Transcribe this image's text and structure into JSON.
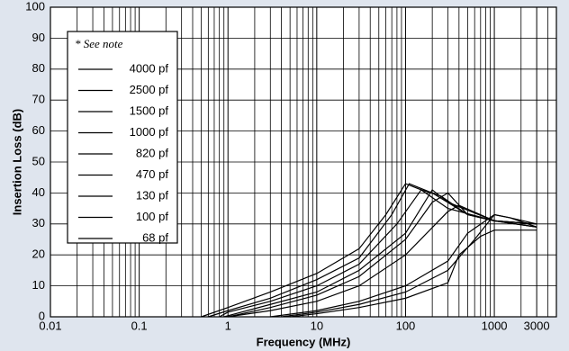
{
  "chart_data": {
    "type": "line",
    "xlabel": "Frequency (MHz)",
    "ylabel": "Insertion Loss (dB)",
    "legend_note": "* See note",
    "legend": "upper left",
    "xscale": "log",
    "xlim": [
      0.01,
      5000
    ],
    "ylim": [
      0,
      100
    ],
    "xticks": [
      0.01,
      0.1,
      1,
      10,
      100,
      1000,
      3000
    ],
    "xgrid": [
      0.02,
      0.03,
      0.04,
      0.05,
      0.06,
      0.07,
      0.08,
      0.09,
      0.2,
      0.3,
      0.4,
      0.5,
      0.6,
      0.7,
      0.8,
      0.9,
      2,
      3,
      4,
      5,
      6,
      7,
      8,
      9,
      20,
      30,
      40,
      50,
      60,
      70,
      80,
      90,
      200,
      300,
      400,
      500,
      600,
      700,
      800,
      900,
      2000,
      4000
    ],
    "yticks": [
      0,
      10,
      20,
      30,
      40,
      50,
      60,
      70,
      80,
      90,
      100
    ],
    "grid": true,
    "series": [
      {
        "name": "4000 pf",
        "color": "#000000",
        "x": [
          0.5,
          1,
          3,
          10,
          30,
          60,
          100,
          150,
          300,
          1000,
          3000
        ],
        "values": [
          0,
          3,
          8,
          14,
          22,
          33,
          43,
          41,
          35,
          31,
          29
        ]
      },
      {
        "name": "2500 pf",
        "color": "#000000",
        "x": [
          0.6,
          1,
          3,
          10,
          30,
          70,
          110,
          200,
          500,
          1000,
          3000
        ],
        "values": [
          0,
          2,
          6,
          12,
          19,
          33,
          43,
          40,
          33,
          31,
          29
        ]
      },
      {
        "name": "1500 pf",
        "color": "#000000",
        "x": [
          0.8,
          1,
          3,
          10,
          30,
          80,
          150,
          250,
          500,
          1000,
          3000
        ],
        "values": [
          0,
          1.5,
          5,
          10,
          17,
          30,
          41,
          39,
          33,
          31,
          30
        ]
      },
      {
        "name": "1000 pf",
        "color": "#000000",
        "x": [
          0.9,
          3,
          10,
          30,
          100,
          200,
          300,
          1000,
          3000
        ],
        "values": [
          0,
          4,
          8,
          15,
          27,
          41,
          37,
          31,
          30
        ]
      },
      {
        "name": "820 pf",
        "color": "#000000",
        "x": [
          1,
          3,
          10,
          30,
          100,
          200,
          300,
          500,
          1000,
          3000
        ],
        "values": [
          0,
          3,
          7,
          13,
          25,
          37,
          40,
          33,
          31,
          30
        ]
      },
      {
        "name": "470 pf",
        "color": "#000000",
        "x": [
          1,
          3,
          10,
          30,
          100,
          300,
          400,
          1000,
          3000
        ],
        "values": [
          0,
          2,
          5,
          10,
          20,
          34,
          36,
          31,
          30
        ]
      },
      {
        "name": "130 pf",
        "color": "#000000",
        "x": [
          3,
          10,
          30,
          100,
          300,
          500,
          1000,
          1500,
          3000
        ],
        "values": [
          0,
          2,
          5,
          10,
          18,
          27,
          33,
          32,
          30
        ]
      },
      {
        "name": "100 pf",
        "color": "#000000",
        "x": [
          4,
          10,
          30,
          100,
          300,
          600,
          1000,
          1500,
          3000
        ],
        "values": [
          0,
          1.5,
          4,
          8,
          15,
          25,
          33,
          32,
          29
        ]
      },
      {
        "name": "68 pf",
        "color": "#000000",
        "x": [
          5,
          10,
          30,
          100,
          300,
          400,
          700,
          1000,
          3000
        ],
        "values": [
          0,
          1,
          3,
          6,
          11,
          20,
          26,
          28,
          28
        ]
      }
    ]
  }
}
